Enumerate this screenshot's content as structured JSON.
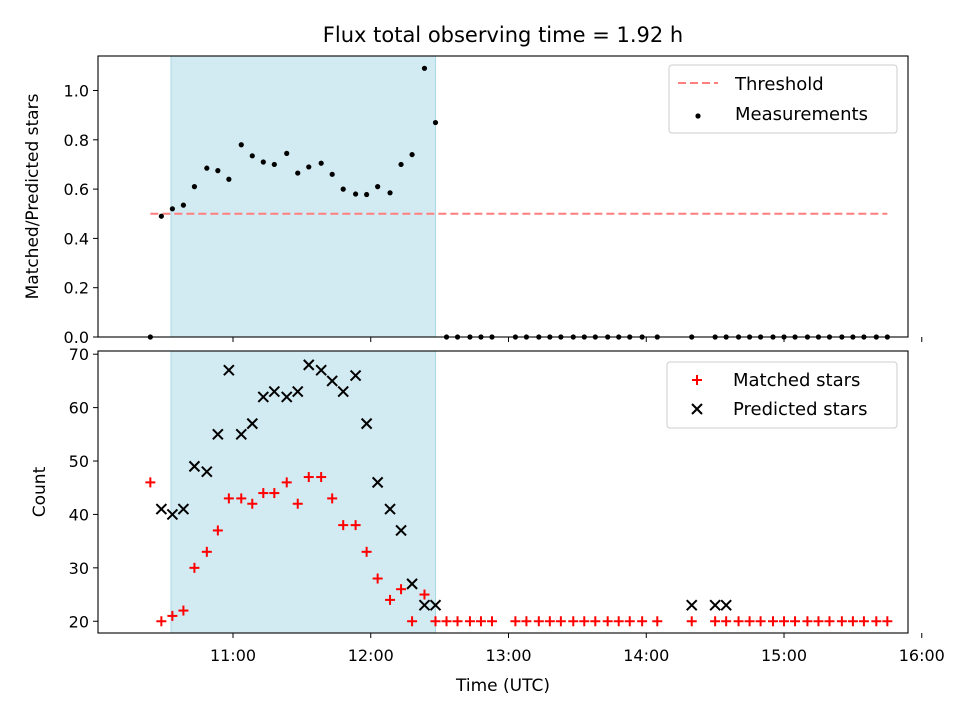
{
  "chart_data": {
    "type": "scatter",
    "title": "Flux total observing time = 1.92 h",
    "xlabel": "Time (UTC)",
    "x_ticks": [
      "11:00",
      "12:00",
      "13:00",
      "14:00",
      "15:00",
      "16:00"
    ],
    "x_tick_values_hours": [
      11,
      12,
      13,
      14,
      15,
      16
    ],
    "xlim_hours": [
      10.02,
      15.9
    ],
    "shaded_interval_hours": [
      10.55,
      12.47
    ],
    "shade_color": "#add8e6",
    "top": {
      "ylabel": "Matched/Predicted stars",
      "ylim": [
        0,
        1.14
      ],
      "y_ticks": [
        "0.0",
        "0.2",
        "0.4",
        "0.6",
        "0.8",
        "1.0"
      ],
      "y_tick_values": [
        0,
        0.2,
        0.4,
        0.6,
        0.8,
        1.0
      ],
      "legend_position": "top-right",
      "threshold": {
        "name": "Threshold",
        "value": 0.5,
        "x_range_hours": [
          10.4,
          15.75
        ],
        "color": "#ff7f7f",
        "style": "dashed"
      },
      "measurements": {
        "name": "Measurements",
        "color": "#000000",
        "points": [
          [
            10.4,
            0.0
          ],
          [
            10.48,
            0.49
          ],
          [
            10.56,
            0.52
          ],
          [
            10.64,
            0.535
          ],
          [
            10.72,
            0.61
          ],
          [
            10.81,
            0.685
          ],
          [
            10.89,
            0.675
          ],
          [
            10.97,
            0.64
          ],
          [
            11.06,
            0.78
          ],
          [
            11.14,
            0.735
          ],
          [
            11.22,
            0.71
          ],
          [
            11.3,
            0.7
          ],
          [
            11.39,
            0.745
          ],
          [
            11.47,
            0.665
          ],
          [
            11.55,
            0.69
          ],
          [
            11.64,
            0.705
          ],
          [
            11.72,
            0.66
          ],
          [
            11.8,
            0.6
          ],
          [
            11.89,
            0.58
          ],
          [
            11.97,
            0.578
          ],
          [
            12.05,
            0.61
          ],
          [
            12.14,
            0.585
          ],
          [
            12.22,
            0.7
          ],
          [
            12.3,
            0.74
          ],
          [
            12.39,
            1.09
          ],
          [
            12.47,
            0.87
          ],
          [
            12.55,
            0.0
          ],
          [
            12.63,
            0.0
          ],
          [
            12.72,
            0.0
          ],
          [
            12.8,
            0.0
          ],
          [
            12.88,
            0.0
          ],
          [
            13.05,
            0.0
          ],
          [
            13.13,
            0.0
          ],
          [
            13.22,
            0.0
          ],
          [
            13.3,
            0.0
          ],
          [
            13.38,
            0.0
          ],
          [
            13.47,
            0.0
          ],
          [
            13.55,
            0.0
          ],
          [
            13.63,
            0.0
          ],
          [
            13.72,
            0.0
          ],
          [
            13.8,
            0.0
          ],
          [
            13.88,
            0.0
          ],
          [
            13.97,
            0.0
          ],
          [
            14.08,
            0.0
          ],
          [
            14.33,
            0.0
          ],
          [
            14.5,
            0.0
          ],
          [
            14.58,
            0.0
          ],
          [
            14.67,
            0.0
          ],
          [
            14.75,
            0.0
          ],
          [
            14.83,
            0.0
          ],
          [
            14.92,
            0.0
          ],
          [
            15.0,
            0.0
          ],
          [
            15.08,
            0.0
          ],
          [
            15.17,
            0.0
          ],
          [
            15.25,
            0.0
          ],
          [
            15.33,
            0.0
          ],
          [
            15.42,
            0.0
          ],
          [
            15.5,
            0.0
          ],
          [
            15.58,
            0.0
          ],
          [
            15.67,
            0.0
          ],
          [
            15.75,
            0.0
          ]
        ]
      }
    },
    "bottom": {
      "ylabel": "Count",
      "ylim": [
        17.8,
        70.6
      ],
      "y_ticks": [
        "20",
        "30",
        "40",
        "50",
        "60",
        "70"
      ],
      "y_tick_values": [
        20,
        30,
        40,
        50,
        60,
        70
      ],
      "legend_position": "top-right",
      "series": [
        {
          "name": "Matched stars",
          "marker": "plus",
          "color": "#ff0000",
          "points": [
            [
              10.4,
              46
            ],
            [
              10.48,
              20
            ],
            [
              10.56,
              21
            ],
            [
              10.64,
              22
            ],
            [
              10.72,
              30
            ],
            [
              10.81,
              33
            ],
            [
              10.89,
              37
            ],
            [
              10.97,
              43
            ],
            [
              11.06,
              43
            ],
            [
              11.14,
              42
            ],
            [
              11.22,
              44
            ],
            [
              11.3,
              44
            ],
            [
              11.39,
              46
            ],
            [
              11.47,
              42
            ],
            [
              11.55,
              47
            ],
            [
              11.64,
              47
            ],
            [
              11.72,
              43
            ],
            [
              11.8,
              38
            ],
            [
              11.89,
              38
            ],
            [
              11.97,
              33
            ],
            [
              12.05,
              28
            ],
            [
              12.14,
              24
            ],
            [
              12.22,
              26
            ],
            [
              12.3,
              20
            ],
            [
              12.39,
              25
            ],
            [
              12.47,
              20
            ],
            [
              12.55,
              20
            ],
            [
              12.63,
              20
            ],
            [
              12.72,
              20
            ],
            [
              12.8,
              20
            ],
            [
              12.88,
              20
            ],
            [
              13.05,
              20
            ],
            [
              13.13,
              20
            ],
            [
              13.22,
              20
            ],
            [
              13.3,
              20
            ],
            [
              13.38,
              20
            ],
            [
              13.47,
              20
            ],
            [
              13.55,
              20
            ],
            [
              13.63,
              20
            ],
            [
              13.72,
              20
            ],
            [
              13.8,
              20
            ],
            [
              13.88,
              20
            ],
            [
              13.97,
              20
            ],
            [
              14.08,
              20
            ],
            [
              14.33,
              20
            ],
            [
              14.5,
              20
            ],
            [
              14.58,
              20
            ],
            [
              14.67,
              20
            ],
            [
              14.75,
              20
            ],
            [
              14.83,
              20
            ],
            [
              14.92,
              20
            ],
            [
              15.0,
              20
            ],
            [
              15.08,
              20
            ],
            [
              15.17,
              20
            ],
            [
              15.25,
              20
            ],
            [
              15.33,
              20
            ],
            [
              15.42,
              20
            ],
            [
              15.5,
              20
            ],
            [
              15.58,
              20
            ],
            [
              15.67,
              20
            ],
            [
              15.75,
              20
            ]
          ]
        },
        {
          "name": "Predicted stars",
          "marker": "x",
          "color": "#000000",
          "points": [
            [
              10.48,
              41
            ],
            [
              10.56,
              40
            ],
            [
              10.64,
              41
            ],
            [
              10.72,
              49
            ],
            [
              10.81,
              48
            ],
            [
              10.89,
              55
            ],
            [
              10.97,
              67
            ],
            [
              11.06,
              55
            ],
            [
              11.14,
              57
            ],
            [
              11.22,
              62
            ],
            [
              11.3,
              63
            ],
            [
              11.39,
              62
            ],
            [
              11.47,
              63
            ],
            [
              11.55,
              68
            ],
            [
              11.64,
              67
            ],
            [
              11.72,
              65
            ],
            [
              11.8,
              63
            ],
            [
              11.89,
              66
            ],
            [
              11.97,
              57
            ],
            [
              12.05,
              46
            ],
            [
              12.14,
              41
            ],
            [
              12.22,
              37
            ],
            [
              12.3,
              27
            ],
            [
              12.39,
              23
            ],
            [
              12.47,
              23
            ],
            [
              14.33,
              23
            ],
            [
              14.5,
              23
            ],
            [
              14.58,
              23
            ]
          ]
        }
      ]
    }
  }
}
